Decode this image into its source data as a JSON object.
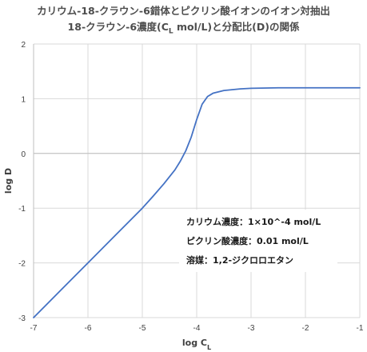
{
  "title": {
    "line1": "カリウム-18-クラウン-6錯体とピクリン酸イオンのイオン対抽出",
    "line2_pre": "18-クラウン-6濃度(C",
    "line2_sub": "L",
    "line2_post": " mol/L)と分配比(D)の関係"
  },
  "annotation": {
    "line1": "カリウム濃度：1×10^-4 mol/L",
    "line2": "ピクリン酸濃度：0.01 mol/L",
    "line3": "溶媒：1,2-ジクロロエタン"
  },
  "chart_data": {
    "type": "line",
    "xlabel": "log C",
    "xlabel_sub": "L",
    "ylabel": "log D",
    "xlim": [
      -7,
      -1
    ],
    "ylim": [
      -3,
      2
    ],
    "xticks": [
      -7,
      -6,
      -5,
      -4,
      -3,
      -2,
      -1
    ],
    "yticks": [
      -3,
      -2,
      -1,
      0,
      1,
      2
    ],
    "grid": true,
    "series": [
      {
        "color": "#4472c4",
        "x": [
          -7.0,
          -6.5,
          -6.0,
          -5.5,
          -5.0,
          -4.8,
          -4.6,
          -4.4,
          -4.3,
          -4.2,
          -4.1,
          -4.0,
          -3.9,
          -3.8,
          -3.7,
          -3.5,
          -3.2,
          -3.0,
          -2.5,
          -2.0,
          -1.5,
          -1.0
        ],
        "y": [
          -3.0,
          -2.5,
          -2.0,
          -1.5,
          -1.0,
          -0.78,
          -0.55,
          -0.3,
          -0.14,
          0.05,
          0.3,
          0.62,
          0.9,
          1.04,
          1.1,
          1.15,
          1.18,
          1.19,
          1.2,
          1.2,
          1.2,
          1.2
        ]
      }
    ]
  }
}
